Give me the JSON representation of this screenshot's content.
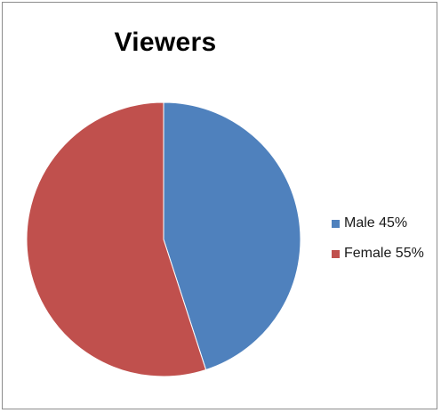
{
  "chart_data": {
    "type": "pie",
    "title": "Viewers",
    "slices": [
      {
        "label": "Male 45%",
        "value": 45,
        "color": "#4f81bd"
      },
      {
        "label": "Female 55%",
        "value": 55,
        "color": "#c0504d"
      }
    ],
    "legend_position": "right"
  }
}
